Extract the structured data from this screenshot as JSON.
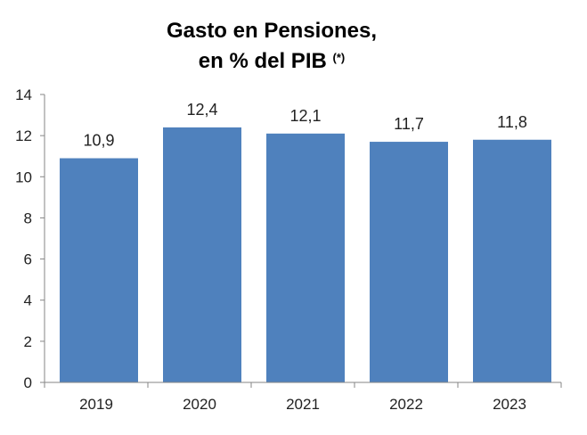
{
  "chart_data": {
    "type": "bar",
    "title_line1": "Gasto en Pensiones,",
    "title_line2": "en % del PIB",
    "title_note": "(*)",
    "categories": [
      "2019",
      "2020",
      "2021",
      "2022",
      "2023"
    ],
    "values": [
      10.9,
      12.4,
      12.1,
      11.7,
      11.8
    ],
    "data_labels": [
      "10,9",
      "12,4",
      "12,1",
      "11,7",
      "11,8"
    ],
    "xlabel": "",
    "ylabel": "",
    "ylim": [
      0,
      14
    ],
    "yticks": [
      0,
      2,
      4,
      6,
      8,
      10,
      12,
      14
    ],
    "grid": false,
    "legend": "none",
    "bar_color": "#4f81bd",
    "axis_color": "#868686"
  }
}
